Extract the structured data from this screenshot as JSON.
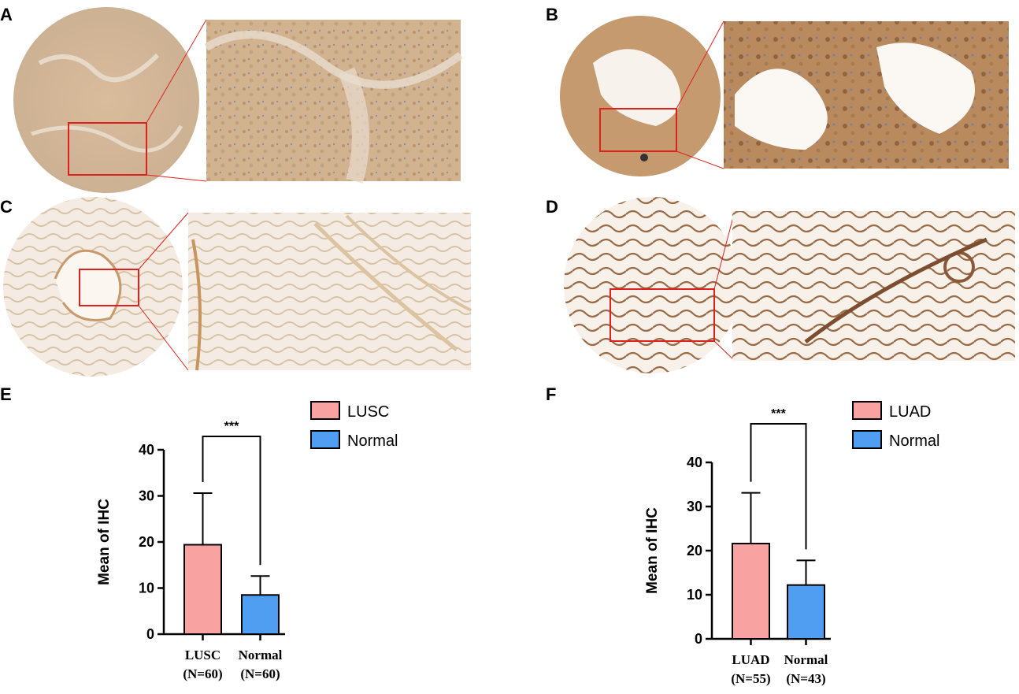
{
  "panels": {
    "A": "A",
    "B": "B",
    "C": "C",
    "D": "D",
    "E": "E",
    "F": "F"
  },
  "colors": {
    "tumor": "#f8a3a1",
    "normal": "#4f9ef2",
    "zoom_box": "#e0201b",
    "stain_light": "#d9c3a6",
    "stain_dark": "#9a6a45"
  },
  "chart_data": [
    {
      "panel": "E",
      "type": "bar",
      "categories": [
        "LUSC",
        "Normal"
      ],
      "category_sublabels": [
        "(N=60)",
        "(N=60)"
      ],
      "values": [
        19.4,
        8.5
      ],
      "error_upper": [
        30.6,
        12.6
      ],
      "ylabel": "Mean of IHC",
      "ylim": [
        0,
        40
      ],
      "yticks": [
        0,
        10,
        20,
        30,
        40
      ],
      "significance": "***",
      "legend": [
        "LUSC",
        "Normal"
      ],
      "legend_position": "top-right",
      "grid": false
    },
    {
      "panel": "F",
      "type": "bar",
      "categories": [
        "LUAD",
        "Normal"
      ],
      "category_sublabels": [
        "(N=55)",
        "(N=43)"
      ],
      "values": [
        21.6,
        12.2
      ],
      "error_upper": [
        33.1,
        17.8
      ],
      "ylabel": "Mean of IHC",
      "ylim": [
        0,
        40
      ],
      "yticks": [
        0,
        10,
        20,
        30,
        40
      ],
      "significance": "***",
      "legend": [
        "LUAD",
        "Normal"
      ],
      "legend_position": "top-right",
      "grid": false
    }
  ]
}
